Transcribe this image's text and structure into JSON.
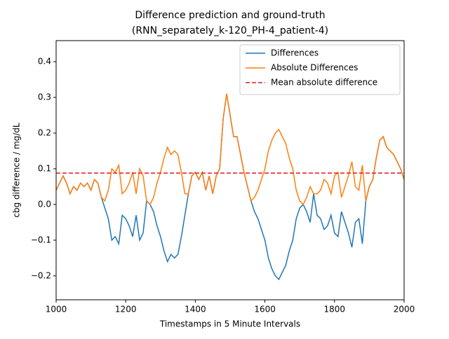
{
  "chart_data": {
    "type": "line",
    "title": [
      "Difference prediction and ground-truth",
      "(RNN_separately_k-120_PH-4_patient-4)"
    ],
    "x_label": "Timestamps in 5 Minute Intervals",
    "y_label": "cbg difference / mg/dL",
    "x": [
      1000,
      1010,
      1020,
      1030,
      1040,
      1050,
      1060,
      1070,
      1080,
      1090,
      1100,
      1110,
      1120,
      1130,
      1140,
      1150,
      1160,
      1170,
      1180,
      1190,
      1200,
      1210,
      1220,
      1230,
      1240,
      1250,
      1260,
      1270,
      1280,
      1290,
      1300,
      1310,
      1320,
      1330,
      1340,
      1350,
      1360,
      1370,
      1380,
      1390,
      1400,
      1410,
      1420,
      1430,
      1440,
      1450,
      1460,
      1470,
      1480,
      1490,
      1500,
      1510,
      1520,
      1530,
      1540,
      1550,
      1560,
      1570,
      1580,
      1590,
      1600,
      1610,
      1620,
      1630,
      1640,
      1650,
      1660,
      1670,
      1680,
      1690,
      1700,
      1710,
      1720,
      1730,
      1740,
      1750,
      1760,
      1770,
      1780,
      1790,
      1800,
      1810,
      1820,
      1830,
      1840,
      1850,
      1860,
      1870,
      1880,
      1890,
      1900,
      1910,
      1920,
      1930,
      1940,
      1950,
      1960,
      1970,
      1980,
      1990,
      2000
    ],
    "series": [
      {
        "name": "Differences",
        "color": "#1f77b4",
        "values": [
          0.04,
          0.06,
          0.08,
          0.06,
          0.03,
          0.05,
          0.04,
          0.06,
          0.05,
          0.06,
          0.04,
          0.07,
          0.06,
          0.02,
          -0.01,
          -0.04,
          -0.1,
          -0.09,
          -0.11,
          -0.03,
          -0.04,
          -0.06,
          -0.09,
          -0.03,
          -0.1,
          -0.08,
          0.01,
          0.0,
          -0.02,
          -0.06,
          -0.09,
          -0.13,
          -0.16,
          -0.14,
          -0.15,
          -0.14,
          -0.09,
          -0.03,
          0.03,
          0.08,
          0.09,
          0.07,
          0.09,
          0.04,
          0.08,
          0.03,
          0.08,
          0.1,
          0.24,
          0.31,
          0.25,
          0.19,
          0.19,
          0.14,
          0.09,
          0.05,
          0.01,
          -0.02,
          -0.04,
          -0.07,
          -0.1,
          -0.15,
          -0.18,
          -0.2,
          -0.21,
          -0.19,
          -0.17,
          -0.13,
          -0.1,
          -0.04,
          -0.01,
          0.0,
          -0.02,
          -0.05,
          0.03,
          -0.03,
          -0.04,
          -0.07,
          -0.06,
          -0.03,
          -0.08,
          -0.09,
          -0.02,
          -0.05,
          -0.08,
          -0.12,
          -0.05,
          -0.04,
          -0.11,
          0.01,
          0.05,
          0.07,
          0.13,
          0.18,
          0.19,
          0.16,
          0.15,
          0.14,
          0.12,
          0.1,
          0.07
        ]
      },
      {
        "name": "Absolute Differences",
        "color": "#ff7f0e",
        "values": [
          0.04,
          0.06,
          0.08,
          0.06,
          0.03,
          0.05,
          0.04,
          0.06,
          0.05,
          0.06,
          0.04,
          0.07,
          0.06,
          0.02,
          0.01,
          0.04,
          0.1,
          0.09,
          0.11,
          0.03,
          0.04,
          0.06,
          0.09,
          0.03,
          0.1,
          0.08,
          0.01,
          0.0,
          0.02,
          0.06,
          0.09,
          0.13,
          0.16,
          0.14,
          0.15,
          0.14,
          0.09,
          0.03,
          0.03,
          0.08,
          0.09,
          0.07,
          0.09,
          0.04,
          0.08,
          0.03,
          0.08,
          0.1,
          0.24,
          0.31,
          0.25,
          0.19,
          0.19,
          0.14,
          0.09,
          0.05,
          0.01,
          0.02,
          0.04,
          0.07,
          0.1,
          0.15,
          0.18,
          0.2,
          0.21,
          0.19,
          0.17,
          0.13,
          0.1,
          0.04,
          0.01,
          0.0,
          0.02,
          0.05,
          0.03,
          0.03,
          0.04,
          0.07,
          0.06,
          0.03,
          0.08,
          0.09,
          0.02,
          0.05,
          0.08,
          0.12,
          0.05,
          0.04,
          0.11,
          0.01,
          0.05,
          0.07,
          0.13,
          0.18,
          0.19,
          0.16,
          0.15,
          0.14,
          0.12,
          0.1,
          0.07
        ]
      }
    ],
    "hline": {
      "name": "Mean absolute difference",
      "color": "#e31a1c",
      "value": 0.088,
      "style": "dashed"
    },
    "xlim": [
      1000,
      2000
    ],
    "xticks": [
      1000,
      1200,
      1400,
      1600,
      1800,
      2000
    ],
    "ylim": [
      -0.267,
      0.459
    ],
    "yticks": [
      {
        "value": -0.2,
        "label": "−0.2"
      },
      {
        "value": -0.1,
        "label": "−0.1"
      },
      {
        "value": 0.0,
        "label": "0.0"
      },
      0.1,
      0.2,
      0.3,
      0.4
    ],
    "legend": "upper right"
  }
}
